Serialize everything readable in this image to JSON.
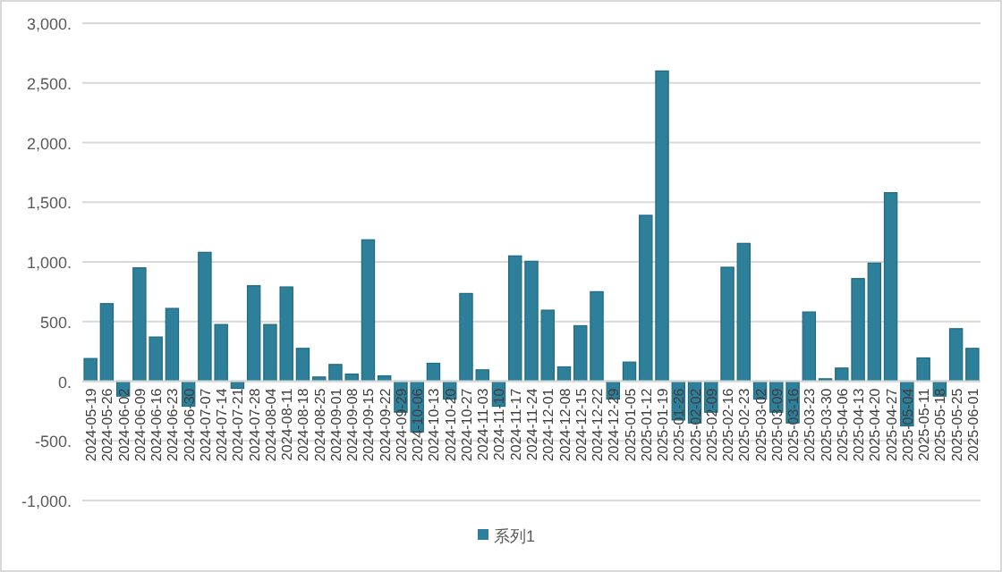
{
  "chart_data": {
    "type": "bar",
    "categories": [
      "2024-05-19",
      "2024-05-26",
      "2024-06-02",
      "2024-06-09",
      "2024-06-16",
      "2024-06-23",
      "2024-06-30",
      "2024-07-07",
      "2024-07-14",
      "2024-07-21",
      "2024-07-28",
      "2024-08-04",
      "2024-08-11",
      "2024-08-18",
      "2024-08-25",
      "2024-09-01",
      "2024-09-08",
      "2024-09-15",
      "2024-09-22",
      "2024-09-29",
      "2024-10-06",
      "2024-10-13",
      "2024-10-20",
      "2024-10-27",
      "2024-11-03",
      "2024-11-10",
      "2024-11-17",
      "2024-11-24",
      "2024-12-01",
      "2024-12-08",
      "2024-12-15",
      "2024-12-22",
      "2024-12-29",
      "2025-01-05",
      "2025-01-12",
      "2025-01-19",
      "2025-01-26",
      "2025-02-02",
      "2025-02-09",
      "2025-02-16",
      "2025-02-23",
      "2025-03-02",
      "2025-03-09",
      "2025-03-16",
      "2025-03-23",
      "2025-03-30",
      "2025-04-06",
      "2025-04-13",
      "2025-04-20",
      "2025-04-27",
      "2025-05-04",
      "2025-05-11",
      "2025-05-18",
      "2025-05-25",
      "2025-06-01"
    ],
    "series": [
      {
        "name": "系列1",
        "color": "#2e7f99",
        "values": [
          190,
          650,
          -125,
          950,
          370,
          610,
          -210,
          1080,
          475,
          -60,
          800,
          475,
          790,
          275,
          35,
          140,
          60,
          1185,
          45,
          -260,
          -425,
          150,
          -150,
          735,
          95,
          -210,
          1050,
          1005,
          595,
          120,
          465,
          750,
          -150,
          160,
          1390,
          2600,
          -325,
          -350,
          -260,
          955,
          1155,
          -150,
          -260,
          -350,
          580,
          20,
          110,
          860,
          990,
          1580,
          -375,
          195,
          -125,
          440,
          275
        ]
      }
    ],
    "ylim": [
      -1000,
      3000
    ],
    "yticks": [
      {
        "value": -1000,
        "label": "-1,000."
      },
      {
        "value": -500,
        "label": "-500."
      },
      {
        "value": 0,
        "label": "0."
      },
      {
        "value": 500,
        "label": "500."
      },
      {
        "value": 1000,
        "label": "1,000."
      },
      {
        "value": 1500,
        "label": "1,500."
      },
      {
        "value": 2000,
        "label": "2,000."
      },
      {
        "value": 2500,
        "label": "2,500."
      },
      {
        "value": 3000,
        "label": "3,000."
      }
    ],
    "grid": "y",
    "legend": "bottom"
  }
}
